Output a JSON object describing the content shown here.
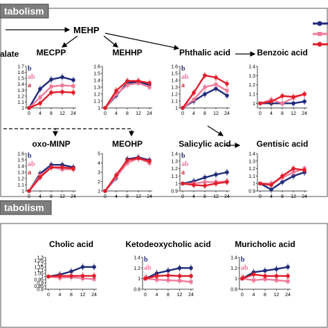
{
  "sections": [
    {
      "id": "top",
      "label": "tabolism"
    },
    {
      "id": "bottom",
      "label": "tabolism"
    }
  ],
  "pathway": {
    "nodes": [
      "MEHP",
      "oxo-MINP"
    ],
    "left_fragment": "alate"
  },
  "colors": {
    "navy": "#1f2a7a",
    "pink": "#f07a9a",
    "red": "#e01d2a"
  },
  "markers": {
    "navy": "circle",
    "pink": "square",
    "red": "circle"
  },
  "group_letters": {
    "MECPP": [
      "b",
      "ab",
      "a"
    ],
    "Phthalic acid": [
      "b",
      "ab",
      "a"
    ],
    "oxo-MINP": [
      "b",
      "ab",
      "a"
    ],
    "Salicylic acid": [
      "b",
      "ab",
      "a"
    ],
    "Ketodeoxycholic acid": [
      "b",
      "ab",
      "a"
    ],
    "Muricholic acid": [
      "b",
      "ab",
      "a"
    ]
  },
  "chart_data": [
    {
      "type": "line",
      "title": "MECPP",
      "x": [
        0,
        4,
        8,
        12,
        24
      ],
      "yticks": [
        "1",
        "1.1",
        "1.2",
        "1.3",
        "1.4",
        "1.5",
        "1.6",
        "1.7"
      ],
      "ylim": [
        1,
        1.7
      ],
      "series": [
        {
          "color": "navy",
          "values": [
            1.0,
            1.32,
            1.48,
            1.52,
            1.47
          ]
        },
        {
          "color": "pink",
          "values": [
            1.0,
            1.18,
            1.36,
            1.38,
            1.37
          ]
        },
        {
          "color": "red",
          "values": [
            1.0,
            1.08,
            1.26,
            1.27,
            1.26
          ]
        }
      ]
    },
    {
      "type": "line",
      "title": "MEHHP",
      "x": [
        0,
        4,
        8,
        12,
        24
      ],
      "yticks": [
        "1",
        "1.1",
        "1.2",
        "1.3",
        "1.4",
        "1.5",
        "1.6"
      ],
      "ylim": [
        1,
        1.6
      ],
      "series": [
        {
          "color": "navy",
          "values": [
            1.0,
            1.18,
            1.36,
            1.38,
            1.33
          ]
        },
        {
          "color": "pink",
          "values": [
            1.0,
            1.2,
            1.33,
            1.36,
            1.3
          ]
        },
        {
          "color": "red",
          "values": [
            1.0,
            1.25,
            1.39,
            1.39,
            1.36
          ]
        }
      ]
    },
    {
      "type": "line",
      "title": "Phthalic acid",
      "x": [
        0,
        4,
        8,
        12,
        24
      ],
      "yticks": [
        "1",
        "1.1",
        "1.2",
        "1.3",
        "1.4",
        "1.5",
        "1.6"
      ],
      "ylim": [
        1,
        1.6
      ],
      "series": [
        {
          "color": "navy",
          "values": [
            1.0,
            1.1,
            1.2,
            1.28,
            1.18
          ]
        },
        {
          "color": "pink",
          "values": [
            1.0,
            1.12,
            1.3,
            1.34,
            1.25
          ]
        },
        {
          "color": "red",
          "values": [
            1.0,
            1.22,
            1.47,
            1.44,
            1.35
          ]
        }
      ]
    },
    {
      "type": "line",
      "title": "Benzoic acid",
      "x": [
        0,
        4,
        8,
        12,
        24
      ],
      "yticks": [
        "1",
        "1.1",
        "1.2",
        "1.3",
        "1.4"
      ],
      "ylim": [
        0.95,
        1.4
      ],
      "series": [
        {
          "color": "navy",
          "values": [
            1.0,
            1.0,
            1.0,
            1.0,
            1.02
          ]
        },
        {
          "color": "pink",
          "values": [
            1.0,
            1.04,
            1.0,
            1.06,
            1.1
          ]
        },
        {
          "color": "red",
          "values": [
            1.0,
            1.02,
            1.08,
            1.07,
            1.1
          ]
        }
      ]
    },
    {
      "type": "line",
      "title": "oxo-MINP",
      "x": [
        0,
        4,
        8,
        12,
        24
      ],
      "yticks": [
        "1",
        "1.1",
        "1.2",
        "1.3",
        "1.4",
        "1.5",
        "1.6"
      ],
      "ylim": [
        1,
        1.6
      ],
      "series": [
        {
          "color": "navy",
          "values": [
            1.0,
            1.28,
            1.42,
            1.42,
            1.38
          ]
        },
        {
          "color": "pink",
          "values": [
            1.0,
            1.25,
            1.38,
            1.35,
            1.35
          ]
        },
        {
          "color": "red",
          "values": [
            1.0,
            1.22,
            1.38,
            1.38,
            1.36
          ]
        }
      ]
    },
    {
      "type": "line",
      "title": "MEOHP",
      "x": [
        0,
        4,
        8,
        12,
        24
      ],
      "yticks": [
        "1",
        "2",
        "3",
        "4",
        "5"
      ],
      "ylim": [
        1,
        5
      ],
      "series": [
        {
          "color": "navy",
          "values": [
            1.0,
            2.4,
            4.4,
            4.6,
            4.3
          ]
        },
        {
          "color": "pink",
          "values": [
            1.0,
            2.5,
            4.0,
            4.5,
            4.0
          ]
        },
        {
          "color": "red",
          "values": [
            1.0,
            2.7,
            4.3,
            4.5,
            4.2
          ]
        }
      ]
    },
    {
      "type": "line",
      "title": "Salicylic acid",
      "x": [
        0,
        4,
        8,
        12,
        24
      ],
      "yticks": [
        "0.9",
        "1",
        "1.1",
        "1.2",
        "1.3",
        "1.4"
      ],
      "ylim": [
        0.9,
        1.4
      ],
      "series": [
        {
          "color": "navy",
          "values": [
            1.0,
            1.03,
            1.08,
            1.12,
            1.15
          ]
        },
        {
          "color": "pink",
          "values": [
            1.0,
            1.0,
            1.02,
            1.02,
            1.03
          ]
        },
        {
          "color": "red",
          "values": [
            1.0,
            0.98,
            0.97,
            1.0,
            1.02
          ]
        }
      ]
    },
    {
      "type": "line",
      "title": "Gentisic acid",
      "x": [
        0,
        4,
        8,
        12,
        24
      ],
      "yticks": [
        "0.9",
        "1",
        "1.1",
        "1.2",
        "1.3",
        "1.4"
      ],
      "ylim": [
        0.9,
        1.4
      ],
      "series": [
        {
          "color": "navy",
          "values": [
            1.0,
            0.92,
            1.02,
            1.1,
            1.15
          ]
        },
        {
          "color": "pink",
          "values": [
            1.0,
            1.0,
            1.08,
            1.15,
            1.2
          ]
        },
        {
          "color": "red",
          "values": [
            1.0,
            0.98,
            1.1,
            1.2,
            1.18
          ]
        }
      ]
    },
    {
      "type": "line",
      "title": "Cholic acid",
      "x": [
        0,
        4,
        8,
        12,
        24
      ],
      "yticks": [
        "0.8",
        "0.85",
        "0.9",
        "0.95",
        "1",
        "1.05",
        "1.1",
        "1.15",
        "1.2",
        "1.25",
        "1.3"
      ],
      "ylim": [
        0.8,
        1.3
      ],
      "series": [
        {
          "color": "navy",
          "values": [
            1.0,
            1.03,
            1.08,
            1.15,
            1.15
          ]
        },
        {
          "color": "pink",
          "values": [
            1.0,
            0.98,
            0.99,
            0.97,
            0.96
          ]
        },
        {
          "color": "red",
          "values": [
            1.0,
            1.01,
            1.01,
            1.01,
            1.01
          ]
        }
      ]
    },
    {
      "type": "line",
      "title": "Ketodeoxycholic acid",
      "x": [
        0,
        4,
        8,
        12,
        24
      ],
      "yticks": [
        "0.8",
        "1",
        "1.2",
        "1.4"
      ],
      "ylim": [
        0.8,
        1.4
      ],
      "series": [
        {
          "color": "navy",
          "values": [
            1.0,
            1.1,
            1.15,
            1.2,
            1.2
          ]
        },
        {
          "color": "pink",
          "values": [
            1.0,
            0.98,
            0.97,
            0.96,
            0.94
          ]
        },
        {
          "color": "red",
          "values": [
            1.0,
            1.05,
            1.06,
            1.05,
            1.05
          ]
        }
      ]
    },
    {
      "type": "line",
      "title": "Muricholic acid",
      "x": [
        0,
        4,
        8,
        12,
        24
      ],
      "yticks": [
        "0.8",
        "1",
        "1.2",
        "1.4"
      ],
      "ylim": [
        0.8,
        1.4
      ],
      "series": [
        {
          "color": "navy",
          "values": [
            1.0,
            1.12,
            1.15,
            1.18,
            1.22
          ]
        },
        {
          "color": "pink",
          "values": [
            1.0,
            0.97,
            0.99,
            0.97,
            0.95
          ]
        },
        {
          "color": "red",
          "values": [
            1.0,
            1.08,
            1.05,
            1.05,
            1.05
          ]
        }
      ]
    }
  ]
}
